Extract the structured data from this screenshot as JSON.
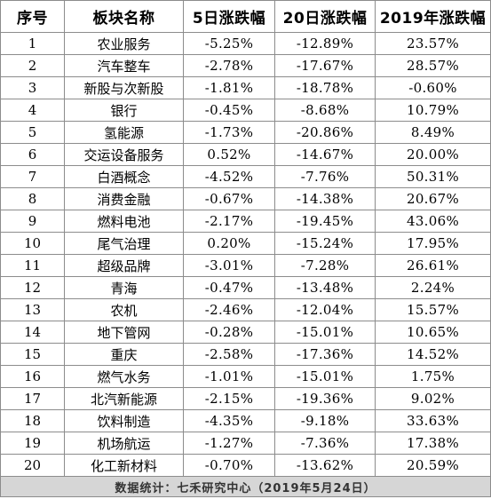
{
  "table": {
    "headers": [
      "序号",
      "板块名称",
      "5日涨跌幅",
      "20日涨跌幅",
      "2019年涨跌幅"
    ],
    "rows": [
      [
        "1",
        "农业服务",
        "-5.25%",
        "-12.89%",
        "23.57%"
      ],
      [
        "2",
        "汽车整车",
        "-2.78%",
        "-17.67%",
        "28.57%"
      ],
      [
        "3",
        "新股与次新股",
        "-1.81%",
        "-18.78%",
        "-0.60%"
      ],
      [
        "4",
        "银行",
        "-0.45%",
        "-8.68%",
        "10.79%"
      ],
      [
        "5",
        "氢能源",
        "-1.73%",
        "-20.86%",
        "8.49%"
      ],
      [
        "6",
        "交运设备服务",
        "0.52%",
        "-14.67%",
        "20.00%"
      ],
      [
        "7",
        "白酒概念",
        "-4.52%",
        "-7.76%",
        "50.31%"
      ],
      [
        "8",
        "消费金融",
        "-0.67%",
        "-14.38%",
        "20.67%"
      ],
      [
        "9",
        "燃料电池",
        "-2.17%",
        "-19.45%",
        "43.06%"
      ],
      [
        "10",
        "尾气治理",
        "0.20%",
        "-15.24%",
        "17.95%"
      ],
      [
        "11",
        "超级品牌",
        "-3.01%",
        "-7.28%",
        "26.61%"
      ],
      [
        "12",
        "青海",
        "-0.47%",
        "-13.48%",
        "2.24%"
      ],
      [
        "13",
        "农机",
        "-2.46%",
        "-12.04%",
        "15.57%"
      ],
      [
        "14",
        "地下管网",
        "-0.28%",
        "-15.01%",
        "10.65%"
      ],
      [
        "15",
        "重庆",
        "-2.58%",
        "-17.36%",
        "14.52%"
      ],
      [
        "16",
        "燃气水务",
        "-1.01%",
        "-15.01%",
        "1.75%"
      ],
      [
        "17",
        "北汽新能源",
        "-2.15%",
        "-19.36%",
        "9.02%"
      ],
      [
        "18",
        "饮料制造",
        "-4.35%",
        "-9.18%",
        "33.63%"
      ],
      [
        "19",
        "机场航运",
        "-1.27%",
        "-7.36%",
        "17.38%"
      ],
      [
        "20",
        "化工新材料",
        "-0.70%",
        "-13.62%",
        "20.59%"
      ]
    ],
    "footer": "数据统计：七禾研究中心（2019年5月24日）"
  }
}
